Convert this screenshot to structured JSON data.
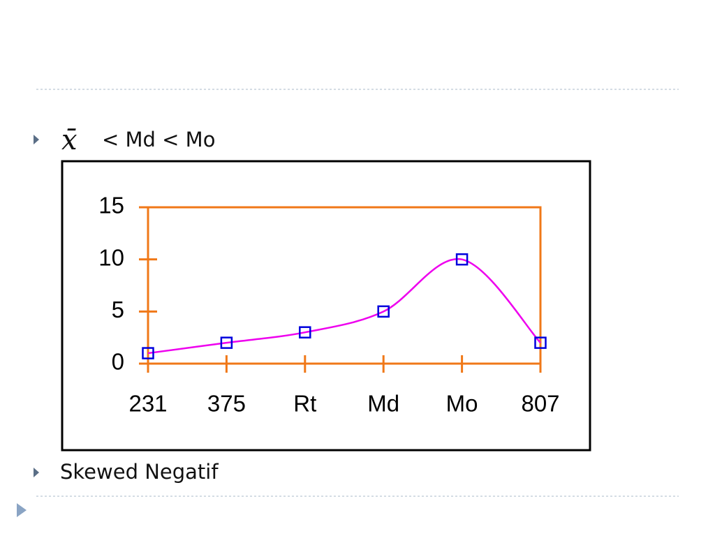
{
  "bullets": [
    {
      "symbol": "x̄",
      "text": "< Md < Mo"
    },
    {
      "text": "Skewed Negatif"
    }
  ],
  "chart_data": {
    "type": "line",
    "categories": [
      "231",
      "375",
      "Rt",
      "Md",
      "Mo",
      "807"
    ],
    "values": [
      1,
      2,
      3,
      5,
      10,
      2
    ],
    "color": "#ee00ee",
    "marker_color": "#0000dd",
    "axis_color": "#f07818",
    "ylim": [
      0,
      15
    ],
    "yticks": [
      0,
      5,
      10,
      15
    ]
  }
}
